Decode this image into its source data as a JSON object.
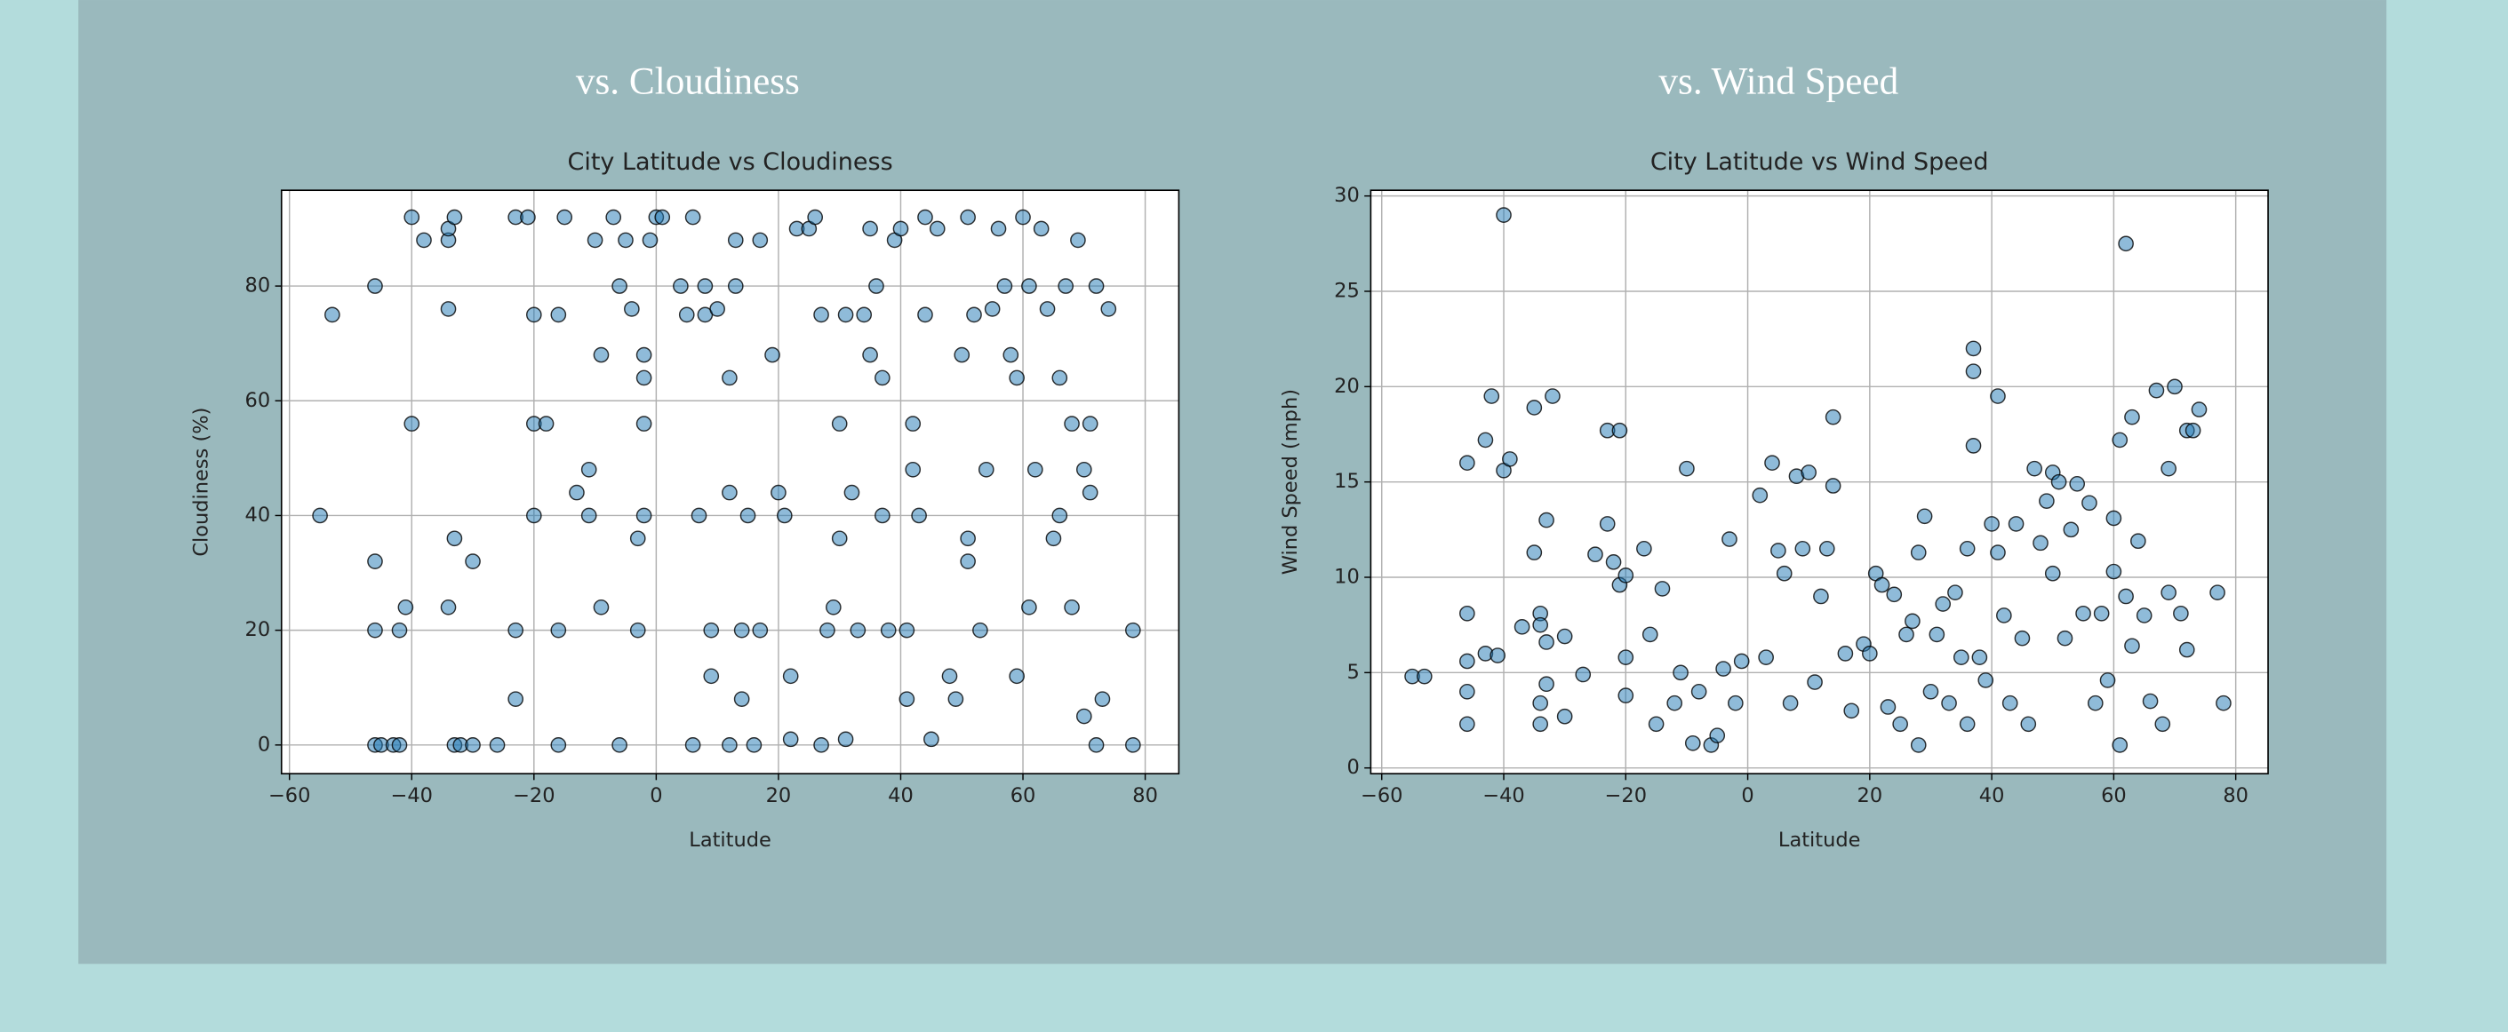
{
  "headings": [
    "vs. Cloudiness",
    "vs. Wind Speed"
  ],
  "chart_data": [
    {
      "type": "scatter",
      "title": "City Latitude vs Cloudiness",
      "x_label": "Latitude",
      "y_label": "Cloudiness (%)",
      "color": "#1f77b4",
      "grid": true,
      "xlim": [
        -61.3,
        85.5
      ],
      "ylim": [
        -5,
        96.7
      ],
      "xticks": [
        {
          "value": -60,
          "label": "−60"
        },
        {
          "value": -40,
          "label": "−40"
        },
        {
          "value": -20,
          "label": "−20"
        },
        0,
        20,
        40,
        60,
        80
      ],
      "yticks": [
        0,
        20,
        40,
        60,
        80
      ],
      "x": [
        -55,
        -53,
        -46,
        -46,
        -46,
        -46,
        -45,
        -43,
        -42,
        -42,
        -41,
        -40,
        -40,
        -38,
        -34,
        -34,
        -34,
        -34,
        -33,
        -33,
        -33,
        -32,
        -30,
        -30,
        -26,
        -23,
        -23,
        -23,
        -21,
        -20,
        -20,
        -20,
        -18,
        -16,
        -16,
        -16,
        -15,
        -13,
        -11,
        -11,
        -10,
        -9,
        -9,
        -7,
        -6,
        -6,
        -5,
        -4,
        -3,
        -3,
        -2,
        -2,
        -2,
        -2,
        -1,
        0,
        1,
        4,
        5,
        6,
        6,
        7,
        8,
        8,
        9,
        9,
        10,
        12,
        12,
        12,
        13,
        13,
        14,
        14,
        15,
        16,
        17,
        17,
        19,
        20,
        21,
        22,
        22,
        23,
        25,
        26,
        27,
        27,
        28,
        29,
        30,
        30,
        31,
        31,
        32,
        33,
        34,
        35,
        35,
        36,
        37,
        37,
        38,
        39,
        40,
        41,
        41,
        42,
        42,
        43,
        44,
        44,
        45,
        46,
        48,
        49,
        50,
        51,
        51,
        51,
        52,
        53,
        54,
        55,
        56,
        57,
        58,
        59,
        59,
        60,
        61,
        61,
        62,
        63,
        64,
        65,
        66,
        66,
        67,
        68,
        68,
        69,
        70,
        71,
        71,
        72,
        72,
        73,
        74,
        78,
        78,
        70
      ],
      "values": [
        40,
        75,
        32,
        80,
        20,
        0,
        0,
        0,
        20,
        0,
        24,
        56,
        92,
        88,
        88,
        90,
        76,
        24,
        92,
        36,
        0,
        0,
        32,
        0,
        0,
        20,
        8,
        92,
        92,
        40,
        56,
        75,
        56,
        75,
        20,
        0,
        92,
        44,
        48,
        40,
        88,
        68,
        24,
        92,
        80,
        0,
        88,
        76,
        36,
        20,
        68,
        64,
        56,
        40,
        88,
        92,
        92,
        80,
        75,
        92,
        0,
        40,
        80,
        75,
        20,
        12,
        76,
        0,
        44,
        64,
        80,
        88,
        20,
        8,
        40,
        0,
        88,
        20,
        68,
        44,
        40,
        12,
        1,
        90,
        90,
        92,
        75,
        0,
        20,
        24,
        56,
        36,
        1,
        75,
        44,
        20,
        75,
        90,
        68,
        80,
        40,
        64,
        20,
        88,
        90,
        20,
        8,
        56,
        48,
        40,
        92,
        75,
        1,
        90,
        12,
        8,
        68,
        36,
        32,
        92,
        75,
        20,
        48,
        76,
        90,
        80,
        68,
        12,
        64,
        92,
        80,
        24,
        48,
        90,
        76,
        36,
        40,
        64,
        80,
        56,
        24,
        88,
        48,
        56,
        44,
        80,
        0,
        8,
        76,
        20,
        0,
        5
      ]
    },
    {
      "type": "scatter",
      "title": "City Latitude vs Wind Speed",
      "x_label": "Latitude",
      "y_label": "Wind Speed (mph)",
      "color": "#1f77b4",
      "grid": true,
      "xlim": [
        -61.8,
        85.3
      ],
      "ylim": [
        -0.3,
        30.3
      ],
      "xticks": [
        {
          "value": -60,
          "label": "−60"
        },
        {
          "value": -40,
          "label": "−40"
        },
        {
          "value": -20,
          "label": "−20"
        },
        0,
        20,
        40,
        60,
        80
      ],
      "yticks": [
        0,
        5,
        10,
        15,
        20,
        25,
        30
      ],
      "x": [
        -55,
        -53,
        -46,
        -46,
        -46,
        -46,
        -46,
        -43,
        -43,
        -42,
        -41,
        -40,
        -40,
        -39,
        -37,
        -35,
        -35,
        -34,
        -34,
        -34,
        -34,
        -33,
        -33,
        -33,
        -32,
        -30,
        -30,
        -27,
        -25,
        -23,
        -23,
        -22,
        -21,
        -21,
        -20,
        -20,
        -20,
        -17,
        -16,
        -15,
        -14,
        -12,
        -11,
        -10,
        -9,
        -8,
        -6,
        -5,
        -4,
        -3,
        -2,
        -1,
        2,
        3,
        4,
        5,
        6,
        7,
        8,
        9,
        10,
        11,
        12,
        13,
        14,
        14,
        16,
        17,
        19,
        20,
        21,
        22,
        23,
        24,
        25,
        26,
        27,
        28,
        28,
        29,
        30,
        31,
        32,
        33,
        34,
        35,
        36,
        36,
        37,
        37,
        37,
        38,
        39,
        40,
        41,
        41,
        42,
        43,
        44,
        45,
        46,
        47,
        48,
        49,
        50,
        50,
        51,
        52,
        53,
        54,
        55,
        56,
        57,
        58,
        59,
        60,
        60,
        61,
        61,
        62,
        62,
        63,
        63,
        64,
        65,
        66,
        67,
        68,
        69,
        69,
        70,
        71,
        72,
        72,
        73,
        74,
        77,
        78
      ],
      "values": [
        4.8,
        4.8,
        16,
        8.1,
        5.6,
        4,
        2.3,
        6,
        17.2,
        19.5,
        5.9,
        29,
        15.6,
        16.2,
        7.4,
        18.9,
        11.3,
        8.1,
        7.5,
        3.4,
        2.3,
        13,
        6.6,
        4.4,
        19.5,
        6.9,
        2.7,
        4.9,
        11.2,
        17.7,
        12.8,
        10.8,
        17.7,
        9.6,
        10.1,
        5.8,
        3.8,
        11.5,
        7,
        2.3,
        9.4,
        3.4,
        5,
        15.7,
        1.3,
        4,
        1.2,
        1.7,
        5.2,
        12,
        3.4,
        5.6,
        14.3,
        5.8,
        16,
        11.4,
        10.2,
        3.4,
        15.3,
        11.5,
        15.5,
        4.5,
        9,
        11.5,
        18.4,
        14.8,
        6,
        3,
        6.5,
        6,
        10.2,
        9.6,
        3.2,
        9.1,
        2.3,
        7,
        7.7,
        11.3,
        1.2,
        13.2,
        4,
        7,
        8.6,
        3.4,
        9.2,
        5.8,
        11.5,
        2.3,
        20.8,
        22,
        16.9,
        5.8,
        4.6,
        12.8,
        19.5,
        11.3,
        8,
        3.4,
        12.8,
        6.8,
        2.3,
        15.7,
        11.8,
        14,
        15.5,
        10.2,
        15,
        6.8,
        12.5,
        14.9,
        8.1,
        13.9,
        3.4,
        8.1,
        4.6,
        13.1,
        10.3,
        17.2,
        1.2,
        27.5,
        9,
        18.4,
        6.4,
        11.9,
        8,
        3.5,
        19.8,
        2.3,
        9.2,
        15.7,
        20,
        8.1,
        17.7,
        6.2,
        17.7,
        18.8,
        9.2,
        3.4
      ]
    }
  ]
}
